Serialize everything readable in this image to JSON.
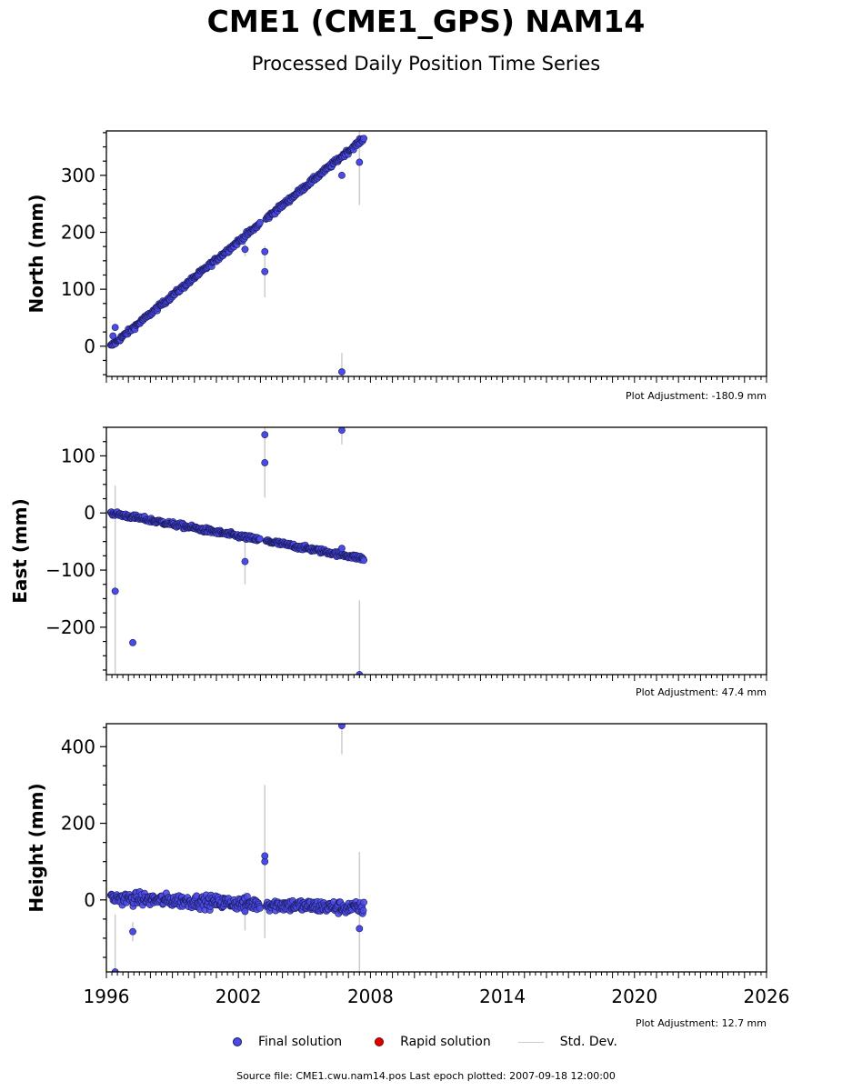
{
  "figure": {
    "title": "CME1 (CME1_GPS) NAM14",
    "subtitle": "Processed Daily Position Time Series",
    "source_prefix": "Source file: ",
    "source_file": "CME1.cwu.nam14.pos",
    "last_epoch_label": "Last epoch plotted: ",
    "last_epoch": "2007-09-18 12:00:00",
    "source_text": "Source file: CME1.cwu.nam14.pos  Last epoch plotted: 2007-09-18 12:00:00"
  },
  "legend": {
    "final": "Final solution",
    "rapid": "Rapid solution",
    "stddev": "Std. Dev."
  },
  "colors": {
    "final_fill": "#4a4ae6",
    "final_edge": "#1a1a5a",
    "rapid_fill": "#dd0000",
    "stddev": "#cccccc"
  },
  "chart_data": [
    {
      "type": "scatter",
      "ylabel": "North (mm)",
      "adjustment": "Plot Adjustment: -180.9 mm",
      "xlim": [
        1996,
        2026
      ],
      "ylim": [
        -53,
        378
      ],
      "yticks": [
        0,
        100,
        200,
        300
      ],
      "trend": {
        "start": [
          1996.2,
          0
        ],
        "end": [
          2007.7,
          365
        ],
        "slope_mm_per_yr": 31.7,
        "scatter": 3
      },
      "outliers": [
        [
          1996.4,
          33,
          0
        ],
        [
          1996.3,
          18,
          0
        ],
        [
          2003.2,
          131,
          45
        ],
        [
          2003.2,
          166,
          0
        ],
        [
          2006.7,
          -45,
          33
        ],
        [
          2006.7,
          300,
          0
        ],
        [
          2007.5,
          323,
          75
        ],
        [
          2002.3,
          170,
          12
        ]
      ]
    },
    {
      "type": "scatter",
      "ylabel": "East (mm)",
      "adjustment": "Plot Adjustment: 47.4 mm",
      "xlim": [
        1996,
        2026
      ],
      "ylim": [
        -283,
        150
      ],
      "yticks": [
        -200,
        -100,
        0,
        100
      ],
      "trend": {
        "start": [
          1996.2,
          0
        ],
        "end": [
          2007.7,
          -80
        ],
        "slope_mm_per_yr": -7.0,
        "scatter": 3
      },
      "outliers": [
        [
          1996.4,
          -137,
          185
        ],
        [
          1997.2,
          -227,
          0
        ],
        [
          2002.3,
          -85,
          40
        ],
        [
          2003.2,
          88,
          60
        ],
        [
          2003.2,
          137,
          110
        ],
        [
          2006.7,
          145,
          25
        ],
        [
          2006.7,
          -62,
          0
        ],
        [
          2007.5,
          -283,
          130
        ]
      ]
    },
    {
      "type": "scatter",
      "ylabel": "Height (mm)",
      "adjustment": "Plot Adjustment: 12.7 mm",
      "xlim": [
        1996,
        2026
      ],
      "ylim": [
        -188,
        460
      ],
      "yticks": [
        0,
        200,
        400
      ],
      "xticks": [
        1996,
        2002,
        2008,
        2014,
        2020,
        2026
      ],
      "trend": {
        "start": [
          1996.2,
          5
        ],
        "end": [
          2007.7,
          -22
        ],
        "slope_mm_per_yr": -2.3,
        "scatter": 12
      },
      "outliers": [
        [
          1996.4,
          -188,
          150
        ],
        [
          1997.2,
          -83,
          25
        ],
        [
          2003.2,
          100,
          200
        ],
        [
          2003.2,
          115,
          150
        ],
        [
          2006.7,
          455,
          75
        ],
        [
          2007.5,
          -75,
          200
        ],
        [
          2002.3,
          -30,
          50
        ]
      ]
    }
  ]
}
